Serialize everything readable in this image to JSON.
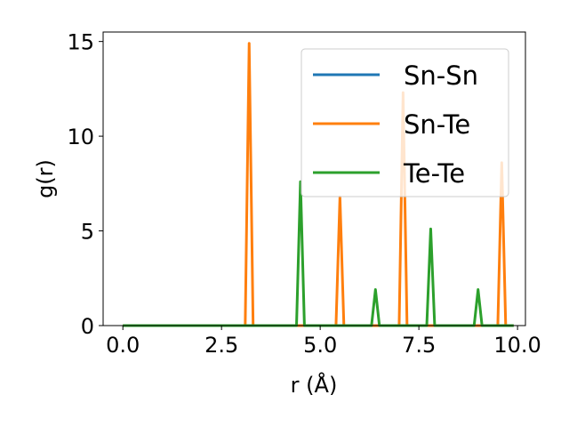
{
  "chart_data": {
    "type": "line",
    "title": "",
    "xlabel": "r (Å)",
    "ylabel": "g(r)",
    "xlim": [
      -0.5,
      10.2
    ],
    "ylim": [
      0,
      15.5
    ],
    "xticks": [
      0.0,
      2.5,
      5.0,
      7.5,
      10.0
    ],
    "xtick_labels": [
      "0.0",
      "2.5",
      "5.0",
      "7.5",
      "10.0"
    ],
    "yticks": [
      0,
      5,
      10,
      15
    ],
    "ytick_labels": [
      "0",
      "5",
      "10",
      "15"
    ],
    "grid": false,
    "legend_position": "top-right",
    "series": [
      {
        "name": "Sn-Sn",
        "color": "#1f77b4",
        "x": [
          0.0,
          9.9
        ],
        "y": [
          0,
          0
        ]
      },
      {
        "name": "Sn-Te",
        "color": "#ff7f0e",
        "x": [
          0.0,
          3.1,
          3.2,
          3.3,
          5.4,
          5.5,
          5.6,
          7.0,
          7.1,
          7.2,
          9.5,
          9.6,
          9.7,
          9.9
        ],
        "y": [
          0,
          0,
          14.9,
          0,
          0,
          6.8,
          0,
          0,
          12.3,
          0,
          0,
          8.6,
          0,
          0
        ]
      },
      {
        "name": "Te-Te",
        "color": "#2ca02c",
        "x": [
          0.0,
          4.4,
          4.5,
          4.6,
          6.3,
          6.4,
          6.5,
          7.7,
          7.8,
          7.9,
          8.9,
          9.0,
          9.1,
          9.9
        ],
        "y": [
          0,
          0,
          7.6,
          0,
          0,
          1.9,
          0,
          0,
          5.1,
          0,
          0,
          1.9,
          0,
          0
        ]
      }
    ]
  }
}
